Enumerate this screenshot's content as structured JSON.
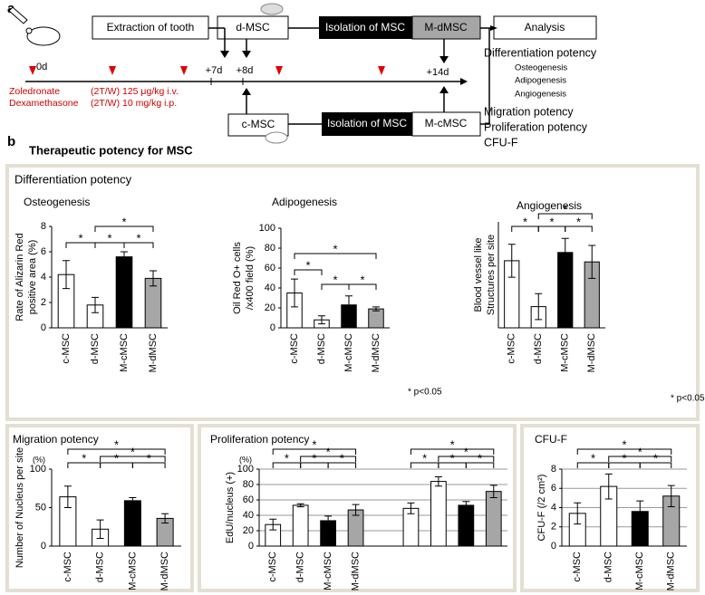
{
  "panel_a": {
    "label": "a",
    "boxes": {
      "extraction": "Extraction of tooth",
      "d_msc": "d-MSC",
      "isolation_top": "Isolation of MSC",
      "m_dmsc": "M-dMSC",
      "analysis": "Analysis",
      "c_msc": "c-MSC",
      "isolation_bottom": "Isolation of MSC",
      "m_cmsc": "M-cMSC"
    },
    "timeline": [
      "0d",
      "+7d",
      "+8d",
      "+14d"
    ],
    "drugs": [
      {
        "name": "Zoledronate",
        "dose": "(2T/W) 125 μg/kg i.v."
      },
      {
        "name": "Dexamethasone",
        "dose": "(2T/W) 10 mg/kg i.p."
      }
    ],
    "analysis_list": [
      {
        "text": "Differentiation potency",
        "sub": [
          "Osteogenesis",
          "Adipogenesis",
          "Angiogenesis"
        ]
      },
      {
        "text": "Migration potency"
      },
      {
        "text": "Proliferation potency"
      },
      {
        "text": "CFU-F"
      }
    ]
  },
  "panel_b": {
    "label": "b",
    "title": "Therapeutic potency for MSC",
    "section": "Differentiation potency"
  },
  "chart_data": [
    {
      "type": "bar",
      "title": "Osteogenesis",
      "y_label": [
        "Rate of Alizarin Red",
        "positive area (%)"
      ],
      "categories": [
        "c-MSC",
        "d-MSC",
        "M-cMSC",
        "M-dMSC"
      ],
      "values": [
        4.2,
        1.8,
        5.6,
        3.9
      ],
      "errors": [
        1.1,
        0.6,
        0.4,
        0.6
      ],
      "colors": [
        "#ffffff",
        "#ffffff",
        "#000000",
        "#a6a6a6"
      ],
      "ylim": [
        0,
        8
      ],
      "yticks": [
        0,
        2,
        4,
        6,
        8
      ],
      "grid": false,
      "annotations": [
        "*",
        "*",
        "*",
        "*"
      ]
    },
    {
      "type": "bar",
      "title": "Adipogenesis",
      "y_label": [
        "Oil Red O+ cells",
        "/x400 field (%)"
      ],
      "categories": [
        "c-MSC",
        "d-MSC",
        "M-cMSC",
        "M-dMSC"
      ],
      "values": [
        35,
        8,
        23,
        19
      ],
      "errors": [
        14,
        4,
        9,
        2
      ],
      "colors": [
        "#ffffff",
        "#ffffff",
        "#000000",
        "#a6a6a6"
      ],
      "ylim": [
        0,
        100
      ],
      "yticks": [
        0,
        20,
        40,
        60,
        80,
        100
      ],
      "grid": false,
      "annotations": [
        "*",
        "*",
        "*",
        "*"
      ],
      "note": "* p<0.05"
    },
    {
      "type": "bar",
      "title": "Angiogenesis",
      "y_label": [
        "Blood vessel like",
        "Structures per site"
      ],
      "categories": [
        "c-MSC",
        "d-MSC",
        "M-cMSC",
        "M-dMSC"
      ],
      "values": [
        5.7,
        1.8,
        6.4,
        5.6
      ],
      "errors": [
        1.4,
        1.1,
        1.2,
        1.4
      ],
      "colors": [
        "#ffffff",
        "#ffffff",
        "#000000",
        "#a6a6a6"
      ],
      "ylim": [
        0,
        9
      ],
      "grid": false,
      "annotations": [
        "*",
        "*",
        "*",
        "*"
      ],
      "note": "* p<0.05"
    },
    {
      "type": "bar",
      "title": "Migration potency",
      "y_label": [
        "Number of Nucleus per site"
      ],
      "y_unit": "(%)",
      "categories": [
        "c-MSC",
        "d-MSC",
        "M-cMSC",
        "M-dMSC"
      ],
      "values": [
        64,
        22,
        59,
        36
      ],
      "errors": [
        14,
        12,
        4,
        6
      ],
      "colors": [
        "#ffffff",
        "#ffffff",
        "#000000",
        "#a6a6a6"
      ],
      "ylim": [
        0,
        100
      ],
      "yticks": [
        0,
        50,
        100
      ],
      "grid": false,
      "annotations": [
        "*",
        "*",
        "*",
        "*",
        "*"
      ]
    },
    {
      "type": "bar",
      "title": "Proliferation potency",
      "y_label": [
        "EdU/nucleus (+)"
      ],
      "y_unit": "(%)",
      "categories": [
        "c-MSC",
        "d-MSC",
        "M-cMSC",
        "M-dMSC",
        null,
        null,
        null,
        null
      ],
      "values": [
        28,
        53,
        33,
        47,
        49,
        84,
        53,
        71
      ],
      "errors": [
        7,
        2,
        6,
        7,
        7,
        6,
        5,
        8
      ],
      "colors": [
        "#ffffff",
        "#ffffff",
        "#000000",
        "#a6a6a6",
        "#ffffff",
        "#ffffff",
        "#000000",
        "#a6a6a6"
      ],
      "ylim": [
        0,
        100
      ],
      "yticks": [
        0,
        20,
        40,
        60,
        80,
        100
      ],
      "grid": true,
      "annotations": [
        "*",
        "*",
        "*",
        "*",
        "*",
        "*",
        "*",
        "*",
        "*",
        "*"
      ]
    },
    {
      "type": "bar",
      "title": "CFU-F",
      "y_label": [
        "CFU-F (/2 cm²)"
      ],
      "categories": [
        "c-MSC",
        "d-MSC",
        "M-cMSC",
        "M-dMSC"
      ],
      "values": [
        3.4,
        6.2,
        3.6,
        5.2
      ],
      "errors": [
        1.1,
        1.3,
        1.1,
        1.1
      ],
      "colors": [
        "#ffffff",
        "#ffffff",
        "#000000",
        "#a6a6a6"
      ],
      "ylim": [
        0,
        8
      ],
      "yticks": [
        0,
        2,
        4,
        6,
        8
      ],
      "grid": true,
      "annotations": [
        "*",
        "*",
        "*",
        "*",
        "*"
      ]
    }
  ]
}
